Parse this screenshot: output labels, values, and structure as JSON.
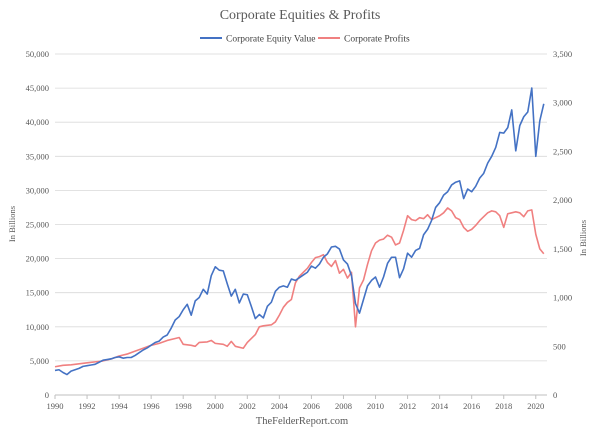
{
  "chart_data": {
    "type": "line",
    "title": "Corporate Equities & Profits",
    "source": "TheFelderReport.com",
    "ylabel_left": "In Billions",
    "ylabel_right": "In Billions",
    "xlim": [
      1990,
      2020.7
    ],
    "ylim_left": [
      0,
      50000
    ],
    "ylim_right": [
      0,
      3500
    ],
    "x_ticks": [
      1990,
      1992,
      1994,
      1996,
      1998,
      2000,
      2002,
      2004,
      2006,
      2008,
      2010,
      2012,
      2014,
      2016,
      2018,
      2020
    ],
    "y_ticks_left": [
      0,
      5000,
      10000,
      15000,
      20000,
      25000,
      30000,
      35000,
      40000,
      45000,
      50000
    ],
    "y_ticks_left_labels": [
      "0",
      "5,000",
      "10,000",
      "15,000",
      "20,000",
      "25,000",
      "30,000",
      "35,000",
      "40,000",
      "45,000",
      "50,000"
    ],
    "y_ticks_right": [
      0,
      500,
      1000,
      1500,
      2000,
      2500,
      3000,
      3500
    ],
    "y_ticks_right_labels": [
      "0",
      "500",
      "1,000",
      "1,500",
      "2,000",
      "2,500",
      "3,000",
      "3,500"
    ],
    "grid": "horizontal",
    "legend": "top-center",
    "series": [
      {
        "name": "Corporate Equity Value",
        "axis": "left",
        "color": "#4472c4",
        "points": [
          [
            1990.0,
            3600
          ],
          [
            1990.25,
            3700
          ],
          [
            1990.5,
            3300
          ],
          [
            1990.75,
            3000
          ],
          [
            1991.0,
            3500
          ],
          [
            1991.25,
            3700
          ],
          [
            1991.5,
            3900
          ],
          [
            1991.75,
            4200
          ],
          [
            1992.0,
            4300
          ],
          [
            1992.25,
            4400
          ],
          [
            1992.5,
            4500
          ],
          [
            1992.75,
            4800
          ],
          [
            1993.0,
            5100
          ],
          [
            1993.25,
            5200
          ],
          [
            1993.5,
            5300
          ],
          [
            1993.75,
            5500
          ],
          [
            1994.0,
            5600
          ],
          [
            1994.25,
            5400
          ],
          [
            1994.5,
            5500
          ],
          [
            1994.75,
            5500
          ],
          [
            1995.0,
            5800
          ],
          [
            1995.25,
            6200
          ],
          [
            1995.5,
            6600
          ],
          [
            1995.75,
            6900
          ],
          [
            1996.0,
            7300
          ],
          [
            1996.25,
            7700
          ],
          [
            1996.5,
            7900
          ],
          [
            1996.75,
            8500
          ],
          [
            1997.0,
            8800
          ],
          [
            1997.25,
            9800
          ],
          [
            1997.5,
            11000
          ],
          [
            1997.75,
            11500
          ],
          [
            1998.0,
            12500
          ],
          [
            1998.25,
            13300
          ],
          [
            1998.5,
            11700
          ],
          [
            1998.75,
            13800
          ],
          [
            1999.0,
            14300
          ],
          [
            1999.25,
            15500
          ],
          [
            1999.5,
            14800
          ],
          [
            1999.75,
            17500
          ],
          [
            2000.0,
            18800
          ],
          [
            2000.25,
            18300
          ],
          [
            2000.5,
            18200
          ],
          [
            2000.75,
            16300
          ],
          [
            2001.0,
            14500
          ],
          [
            2001.25,
            15500
          ],
          [
            2001.5,
            13500
          ],
          [
            2001.75,
            14800
          ],
          [
            2002.0,
            14700
          ],
          [
            2002.25,
            13000
          ],
          [
            2002.5,
            11200
          ],
          [
            2002.75,
            11800
          ],
          [
            2003.0,
            11300
          ],
          [
            2003.25,
            13000
          ],
          [
            2003.5,
            13600
          ],
          [
            2003.75,
            15200
          ],
          [
            2004.0,
            15800
          ],
          [
            2004.25,
            16000
          ],
          [
            2004.5,
            15800
          ],
          [
            2004.75,
            17000
          ],
          [
            2005.0,
            16800
          ],
          [
            2005.25,
            17200
          ],
          [
            2005.5,
            17600
          ],
          [
            2005.75,
            18000
          ],
          [
            2006.0,
            18900
          ],
          [
            2006.25,
            18600
          ],
          [
            2006.5,
            19200
          ],
          [
            2006.75,
            20200
          ],
          [
            2007.0,
            20700
          ],
          [
            2007.25,
            21700
          ],
          [
            2007.5,
            21800
          ],
          [
            2007.75,
            21400
          ],
          [
            2008.0,
            19800
          ],
          [
            2008.25,
            19200
          ],
          [
            2008.5,
            17500
          ],
          [
            2008.75,
            13400
          ],
          [
            2009.0,
            12000
          ],
          [
            2009.25,
            14000
          ],
          [
            2009.5,
            16000
          ],
          [
            2009.75,
            16800
          ],
          [
            2010.0,
            17300
          ],
          [
            2010.25,
            15800
          ],
          [
            2010.5,
            17300
          ],
          [
            2010.75,
            19300
          ],
          [
            2011.0,
            20200
          ],
          [
            2011.25,
            20200
          ],
          [
            2011.5,
            17200
          ],
          [
            2011.75,
            18500
          ],
          [
            2012.0,
            20800
          ],
          [
            2012.25,
            20200
          ],
          [
            2012.5,
            21200
          ],
          [
            2012.75,
            21500
          ],
          [
            2013.0,
            23500
          ],
          [
            2013.25,
            24300
          ],
          [
            2013.5,
            25600
          ],
          [
            2013.75,
            27500
          ],
          [
            2014.0,
            28200
          ],
          [
            2014.25,
            29300
          ],
          [
            2014.5,
            29800
          ],
          [
            2014.75,
            30800
          ],
          [
            2015.0,
            31200
          ],
          [
            2015.25,
            31400
          ],
          [
            2015.5,
            28800
          ],
          [
            2015.75,
            30200
          ],
          [
            2016.0,
            29800
          ],
          [
            2016.25,
            30600
          ],
          [
            2016.5,
            31800
          ],
          [
            2016.75,
            32500
          ],
          [
            2017.0,
            34000
          ],
          [
            2017.25,
            35000
          ],
          [
            2017.5,
            36300
          ],
          [
            2017.75,
            38500
          ],
          [
            2018.0,
            38400
          ],
          [
            2018.25,
            39200
          ],
          [
            2018.5,
            41800
          ],
          [
            2018.75,
            35800
          ],
          [
            2019.0,
            39500
          ],
          [
            2019.25,
            40800
          ],
          [
            2019.5,
            41500
          ],
          [
            2019.75,
            45000
          ],
          [
            2020.0,
            35000
          ],
          [
            2020.25,
            40200
          ],
          [
            2020.5,
            42700
          ]
        ]
      },
      {
        "name": "Corporate Profits",
        "axis": "right",
        "color": "#f08080",
        "points": [
          [
            1990.0,
            290
          ],
          [
            1990.5,
            305
          ],
          [
            1991.0,
            310
          ],
          [
            1991.5,
            320
          ],
          [
            1992.0,
            330
          ],
          [
            1992.5,
            340
          ],
          [
            1993.0,
            350
          ],
          [
            1993.5,
            370
          ],
          [
            1994.0,
            400
          ],
          [
            1994.5,
            420
          ],
          [
            1995.0,
            450
          ],
          [
            1995.5,
            480
          ],
          [
            1996.0,
            510
          ],
          [
            1996.5,
            530
          ],
          [
            1997.0,
            560
          ],
          [
            1997.5,
            580
          ],
          [
            1997.75,
            590
          ],
          [
            1998.0,
            520
          ],
          [
            1998.5,
            510
          ],
          [
            1998.75,
            500
          ],
          [
            1999.0,
            540
          ],
          [
            1999.5,
            545
          ],
          [
            1999.75,
            560
          ],
          [
            2000.0,
            530
          ],
          [
            2000.5,
            520
          ],
          [
            2000.75,
            500
          ],
          [
            2001.0,
            550
          ],
          [
            2001.25,
            500
          ],
          [
            2001.75,
            480
          ],
          [
            2002.0,
            540
          ],
          [
            2002.5,
            620
          ],
          [
            2002.75,
            700
          ],
          [
            2003.0,
            710
          ],
          [
            2003.5,
            720
          ],
          [
            2003.75,
            750
          ],
          [
            2004.0,
            820
          ],
          [
            2004.25,
            900
          ],
          [
            2004.5,
            950
          ],
          [
            2004.75,
            980
          ],
          [
            2005.0,
            1150
          ],
          [
            2005.25,
            1220
          ],
          [
            2005.5,
            1260
          ],
          [
            2005.75,
            1300
          ],
          [
            2006.0,
            1360
          ],
          [
            2006.25,
            1410
          ],
          [
            2006.5,
            1420
          ],
          [
            2006.75,
            1440
          ],
          [
            2007.0,
            1360
          ],
          [
            2007.25,
            1320
          ],
          [
            2007.5,
            1380
          ],
          [
            2007.75,
            1250
          ],
          [
            2008.0,
            1290
          ],
          [
            2008.25,
            1200
          ],
          [
            2008.5,
            1260
          ],
          [
            2008.75,
            700
          ],
          [
            2009.0,
            1100
          ],
          [
            2009.25,
            1180
          ],
          [
            2009.5,
            1340
          ],
          [
            2009.75,
            1480
          ],
          [
            2010.0,
            1560
          ],
          [
            2010.25,
            1590
          ],
          [
            2010.5,
            1600
          ],
          [
            2010.75,
            1640
          ],
          [
            2011.0,
            1620
          ],
          [
            2011.25,
            1540
          ],
          [
            2011.5,
            1560
          ],
          [
            2011.75,
            1690
          ],
          [
            2012.0,
            1840
          ],
          [
            2012.25,
            1800
          ],
          [
            2012.5,
            1790
          ],
          [
            2012.75,
            1820
          ],
          [
            2013.0,
            1810
          ],
          [
            2013.25,
            1850
          ],
          [
            2013.5,
            1800
          ],
          [
            2013.75,
            1820
          ],
          [
            2014.0,
            1840
          ],
          [
            2014.25,
            1870
          ],
          [
            2014.5,
            1920
          ],
          [
            2014.75,
            1890
          ],
          [
            2015.0,
            1820
          ],
          [
            2015.25,
            1800
          ],
          [
            2015.5,
            1720
          ],
          [
            2015.75,
            1680
          ],
          [
            2016.0,
            1700
          ],
          [
            2016.25,
            1740
          ],
          [
            2016.5,
            1790
          ],
          [
            2016.75,
            1830
          ],
          [
            2017.0,
            1870
          ],
          [
            2017.25,
            1890
          ],
          [
            2017.5,
            1880
          ],
          [
            2017.75,
            1840
          ],
          [
            2018.0,
            1720
          ],
          [
            2018.25,
            1860
          ],
          [
            2018.5,
            1870
          ],
          [
            2018.75,
            1880
          ],
          [
            2019.0,
            1870
          ],
          [
            2019.25,
            1830
          ],
          [
            2019.5,
            1890
          ],
          [
            2019.75,
            1900
          ],
          [
            2020.0,
            1650
          ],
          [
            2020.25,
            1500
          ],
          [
            2020.5,
            1450
          ]
        ]
      }
    ]
  }
}
